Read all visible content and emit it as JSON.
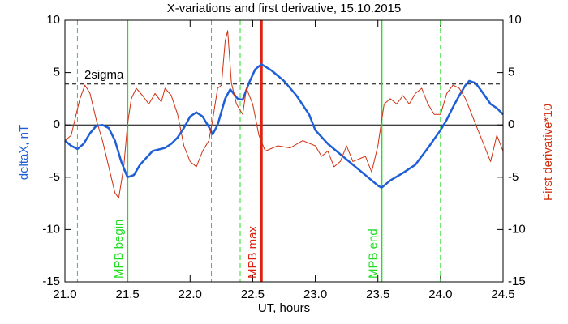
{
  "chart_data": {
    "type": "line",
    "title": "X-variations and first derivative, 15.10.2015",
    "xlabel": "UT, hours",
    "ylabel": "deltaX, nT",
    "y2label": "First derivative*10",
    "xlim": [
      21.0,
      24.5
    ],
    "xticks": [
      {
        "value": 21.0,
        "label": "21.0"
      },
      {
        "value": 21.5,
        "label": "21.5"
      },
      {
        "value": 22.0,
        "label": "22.0"
      },
      {
        "value": 22.5,
        "label": "22.5"
      },
      {
        "value": 23.0,
        "label": "23.0"
      },
      {
        "value": 23.5,
        "label": "23.5"
      },
      {
        "value": 24.0,
        "label": "24.0"
      },
      {
        "value": 24.5,
        "label": "24.5"
      }
    ],
    "ylim": [
      -15,
      10
    ],
    "yticks": [
      -15,
      -10,
      -5,
      0,
      5,
      10
    ],
    "y2lim": [
      -15,
      10
    ],
    "y2ticks": [
      -15,
      -10,
      -5,
      0,
      5,
      10
    ],
    "series": [
      {
        "name": "deltaX",
        "color": "#1f5fd6",
        "axis": "y",
        "x": [
          21.0,
          21.05,
          21.1,
          21.15,
          21.2,
          21.25,
          21.3,
          21.35,
          21.4,
          21.45,
          21.5,
          21.55,
          21.6,
          21.7,
          21.8,
          21.85,
          21.9,
          21.95,
          22.0,
          22.05,
          22.1,
          22.15,
          22.18,
          22.22,
          22.28,
          22.32,
          22.38,
          22.42,
          22.47,
          22.52,
          22.57,
          22.65,
          22.75,
          22.85,
          22.95,
          23.0,
          23.1,
          23.2,
          23.3,
          23.4,
          23.5,
          23.53,
          23.6,
          23.7,
          23.8,
          23.9,
          24.0,
          24.05,
          24.1,
          24.15,
          24.2,
          24.23,
          24.28,
          24.33,
          24.4,
          24.45,
          24.5
        ],
        "values": [
          -1.5,
          -2.0,
          -2.3,
          -1.8,
          -0.8,
          -0.1,
          0,
          -0.3,
          -1.5,
          -3.5,
          -5.0,
          -4.8,
          -3.8,
          -2.5,
          -2.2,
          -1.8,
          -1.2,
          -0.3,
          0.8,
          1.2,
          0.8,
          -0.2,
          -0.9,
          0,
          2.5,
          3.4,
          2.5,
          2.4,
          4.0,
          5.3,
          5.8,
          5.2,
          4.2,
          2.8,
          1.0,
          -0.5,
          -1.8,
          -2.8,
          -3.8,
          -4.8,
          -5.8,
          -6.0,
          -5.3,
          -4.6,
          -3.8,
          -2.2,
          -0.5,
          0.5,
          1.7,
          2.8,
          3.8,
          4.2,
          4.0,
          3.2,
          2.0,
          1.6,
          1.0
        ]
      },
      {
        "name": "First derivative*10",
        "color": "#d03010",
        "axis": "y2",
        "x": [
          21.0,
          21.05,
          21.08,
          21.12,
          21.16,
          21.2,
          21.25,
          21.3,
          21.35,
          21.4,
          21.43,
          21.47,
          21.5,
          21.53,
          21.57,
          21.62,
          21.67,
          21.72,
          21.77,
          21.8,
          21.85,
          21.9,
          21.95,
          22.0,
          22.05,
          22.1,
          22.15,
          22.18,
          22.22,
          22.25,
          22.28,
          22.3,
          22.33,
          22.37,
          22.42,
          22.45,
          22.5,
          22.55,
          22.6,
          22.7,
          22.8,
          22.9,
          23.0,
          23.05,
          23.1,
          23.15,
          23.2,
          23.25,
          23.3,
          23.4,
          23.45,
          23.5,
          23.55,
          23.6,
          23.65,
          23.7,
          23.75,
          23.8,
          23.85,
          23.9,
          23.95,
          24.0,
          24.05,
          24.1,
          24.15,
          24.2,
          24.25,
          24.3,
          24.35,
          24.4,
          24.45,
          24.5
        ],
        "values": [
          -1.5,
          -1,
          0.5,
          2.5,
          3.8,
          3.0,
          0.5,
          -1.5,
          -4,
          -6.5,
          -7,
          -4,
          0,
          2.5,
          3.5,
          2.8,
          2.0,
          3.0,
          2.2,
          3.5,
          2.8,
          1.0,
          -2,
          -3.5,
          -4,
          -2.5,
          -1.5,
          0.5,
          3.5,
          3.8,
          8.0,
          9.0,
          4.0,
          2.0,
          1.0,
          3.5,
          2.0,
          -1.0,
          -2.5,
          -2.0,
          -2.2,
          -1.5,
          -2.0,
          -3.0,
          -2.5,
          -4.0,
          -3.5,
          -2.0,
          -3.5,
          -3.0,
          -4.5,
          -2.0,
          2.0,
          2.5,
          2.0,
          2.8,
          2.0,
          3.0,
          3.5,
          2.0,
          1.0,
          1.0,
          3.0,
          3.8,
          3.5,
          2.5,
          1.0,
          -0.5,
          -2.0,
          -3.5,
          -1.0,
          -2.5
        ]
      }
    ],
    "hlines": [
      {
        "y": 3.9,
        "label": "2sigma",
        "color": "#000000",
        "style": "dashed"
      },
      {
        "y": 0,
        "color": "#000000",
        "style": "solid"
      }
    ],
    "vlines": [
      {
        "x": 21.1,
        "color": "#22dd22",
        "style": "dashed"
      },
      {
        "x": 21.5,
        "color": "#22dd22",
        "style": "solid",
        "label": "MPB begin"
      },
      {
        "x": 22.17,
        "color": "#22dd22",
        "style": "dashed"
      },
      {
        "x": 22.4,
        "color": "#22dd22",
        "style": "dashed"
      },
      {
        "x": 22.57,
        "color": "#e02010",
        "style": "thick",
        "label": "MPB max"
      },
      {
        "x": 23.53,
        "color": "#22dd22",
        "style": "solid",
        "label": "MPB end"
      },
      {
        "x": 24.0,
        "color": "#22dd22",
        "style": "dashed"
      }
    ]
  }
}
